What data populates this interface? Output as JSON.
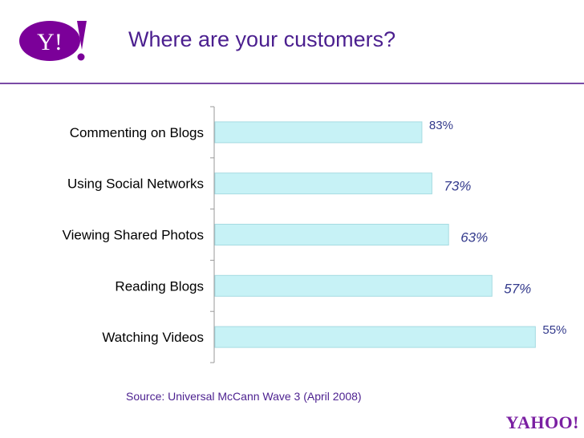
{
  "header": {
    "title": "Where are your customers?"
  },
  "colors": {
    "brand": "#7b0099",
    "title_text": "#4b1f8f",
    "bar_fill": "#c7f2f6",
    "bar_stroke": "#a6dbe2",
    "value_text": "#333a8c"
  },
  "footer": {
    "source": "Source: Universal McCann Wave 3 (April 2008)",
    "logo_text": "YAHOO!"
  },
  "chart_data": {
    "type": "bar",
    "orientation": "horizontal",
    "title": "",
    "xlabel": "",
    "ylabel": "",
    "grid": false,
    "categories": [
      "Commenting on Blogs",
      "Using Social Networks",
      "Viewing Shared Photos",
      "Reading Blogs",
      "Watching Videos"
    ],
    "values": [
      83,
      73,
      63,
      57,
      55
    ],
    "value_labels": [
      "83%",
      "73%",
      "63%",
      "57%",
      "55%"
    ],
    "value_label_italic": [
      false,
      true,
      true,
      true,
      false
    ],
    "relative_bar_lengths": [
      0.62,
      0.65,
      0.7,
      0.83,
      0.96
    ]
  }
}
